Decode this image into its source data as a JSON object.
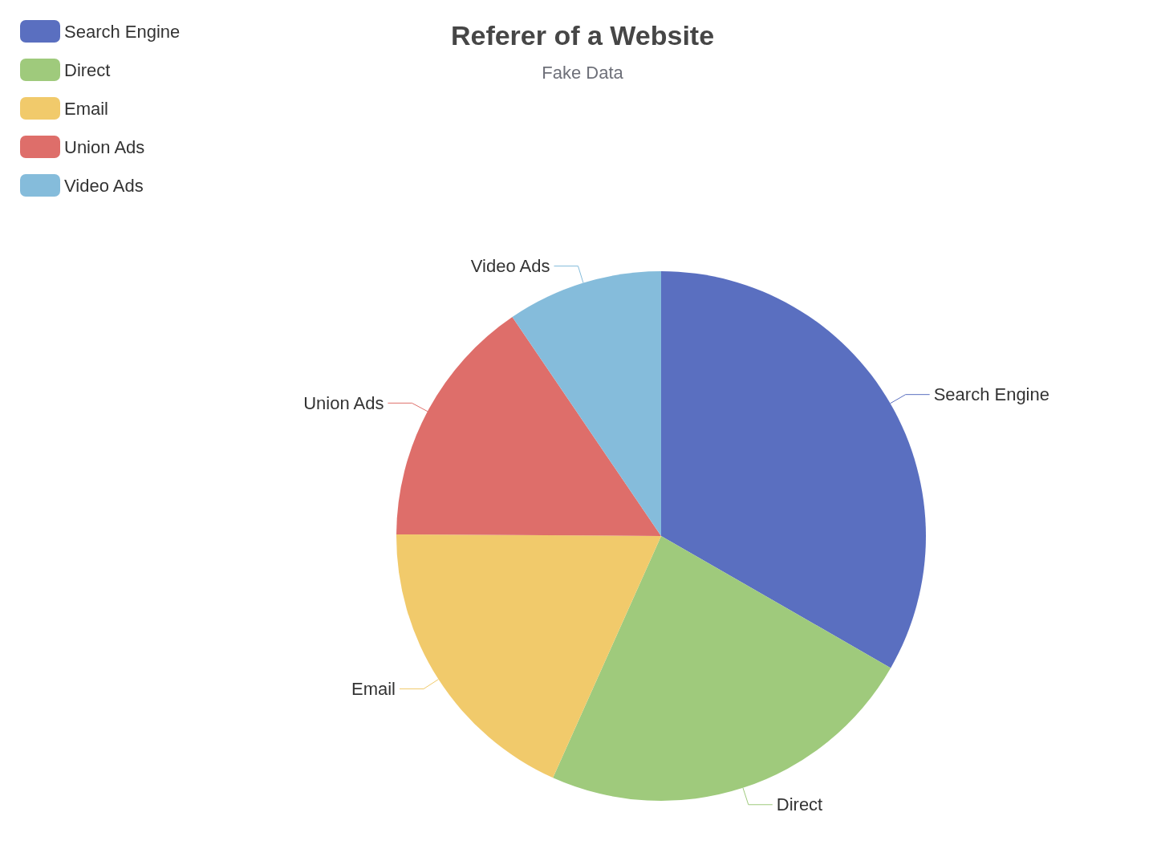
{
  "chart_data": {
    "type": "pie",
    "title": "Referer of a Website",
    "subtitle": "Fake Data",
    "categories": [
      "Search Engine",
      "Direct",
      "Email",
      "Union Ads",
      "Video Ads"
    ],
    "values": [
      33.3,
      23.4,
      18.4,
      15.4,
      9.5
    ],
    "colors": [
      "#5a6fc0",
      "#9fca7c",
      "#f1ca6b",
      "#de6e6a",
      "#85bcdb"
    ],
    "legend": "top left"
  }
}
